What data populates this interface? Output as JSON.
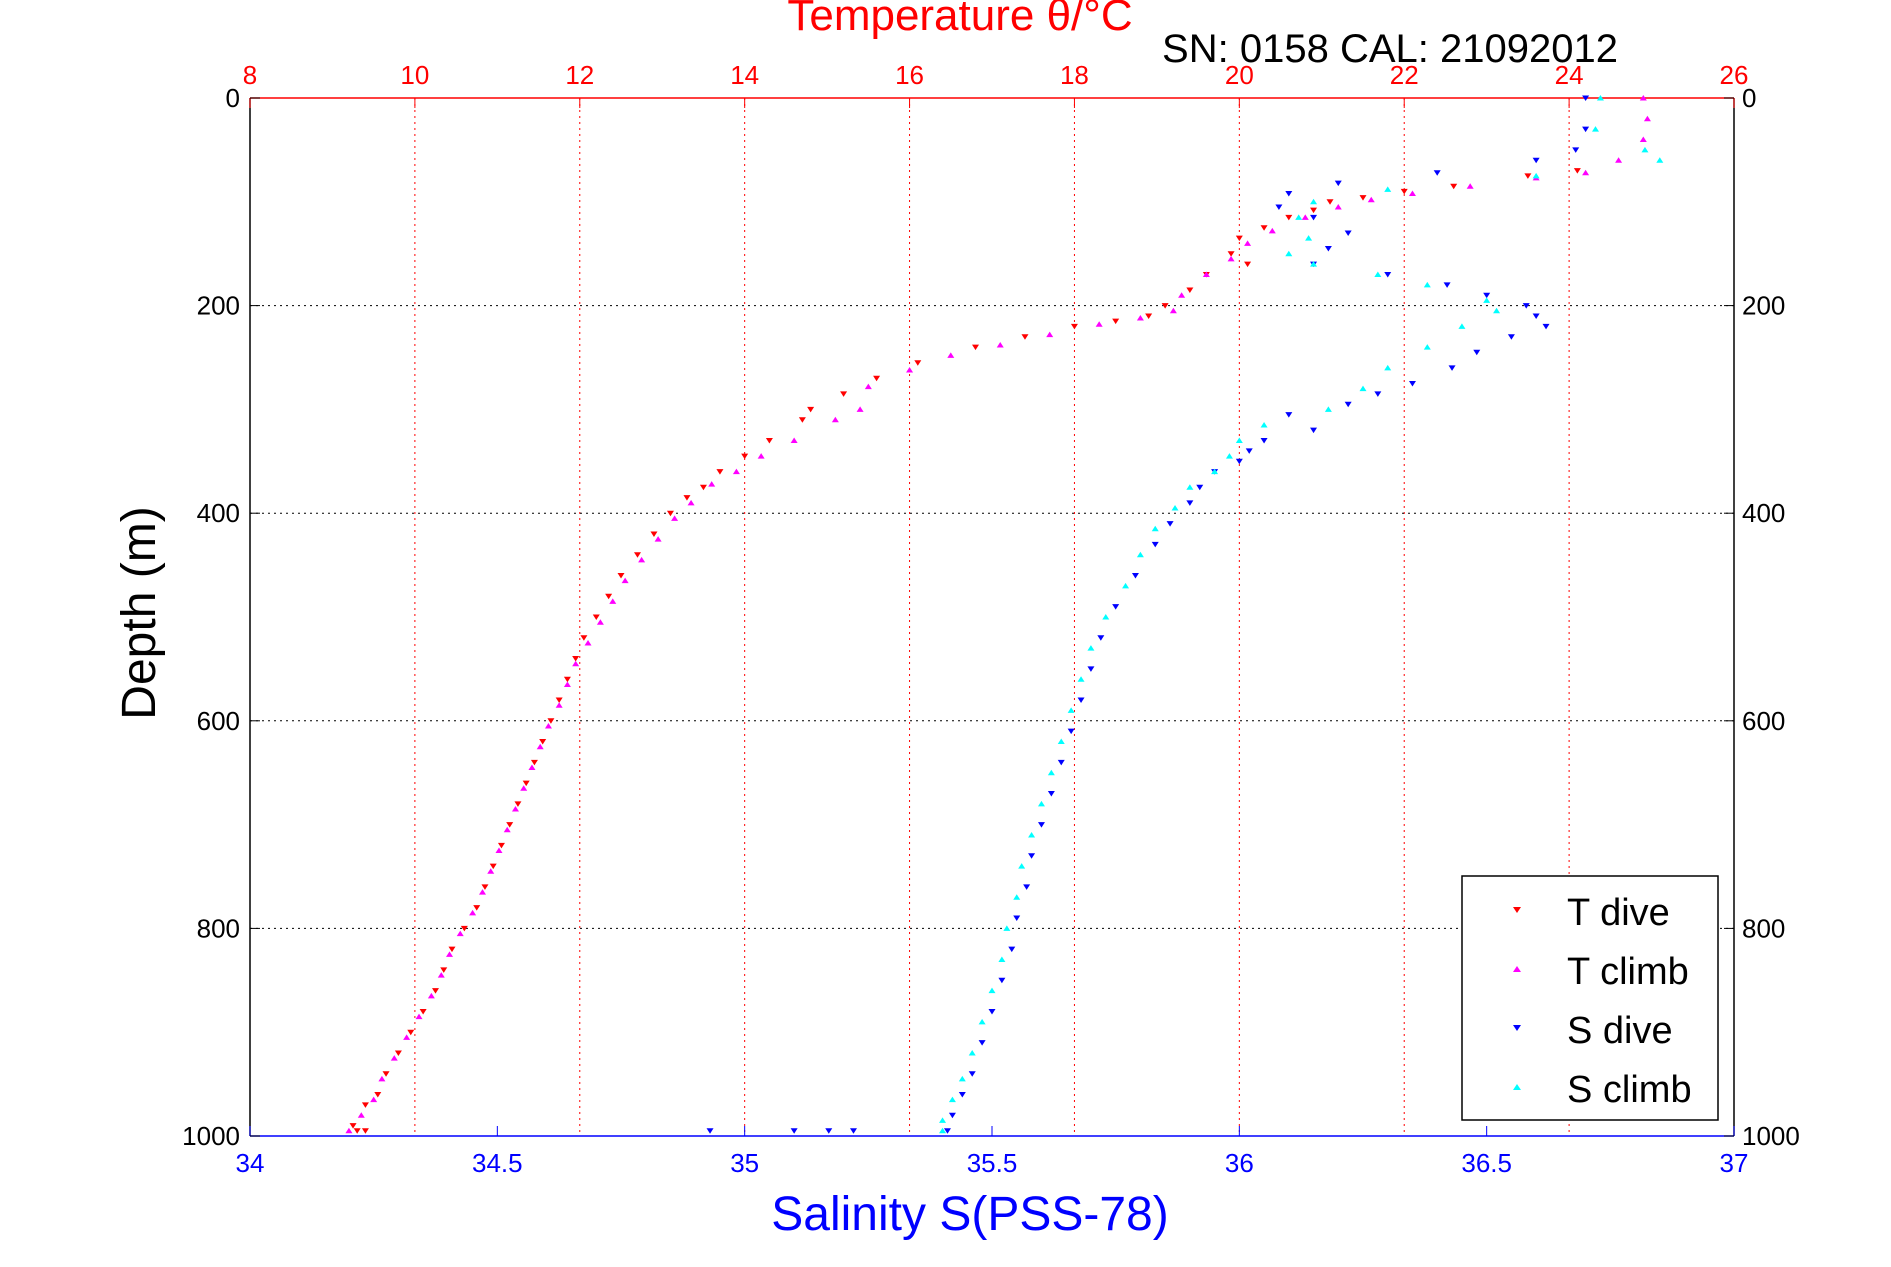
{
  "chart_data": {
    "type": "scatter",
    "title": "Temperature θ/°C",
    "subtitle": "SN: 0158  CAL: 21092012",
    "xlabel": "Salinity S(PSS-78)",
    "ylabel": "Depth (m)",
    "x_top": {
      "range": [
        8,
        26
      ],
      "ticks": [
        "8",
        "10",
        "12",
        "14",
        "16",
        "18",
        "20",
        "22",
        "24",
        "26"
      ],
      "color": "#ff0000"
    },
    "x_bottom": {
      "range": [
        34,
        37
      ],
      "ticks": [
        "34",
        "34.5",
        "35",
        "35.5",
        "36",
        "36.5",
        "37"
      ],
      "color": "#0000ff"
    },
    "y": {
      "range": [
        0,
        1000
      ],
      "reversed": true,
      "ticks": [
        "0",
        "200",
        "400",
        "600",
        "800",
        "1000"
      ]
    },
    "grid": true,
    "legend_position": "bottom-right",
    "series": [
      {
        "name": "T dive",
        "axis": "top",
        "color": "#ff0000",
        "marker": "triangle-down",
        "points": [
          [
            24.1,
            70
          ],
          [
            23.5,
            75
          ],
          [
            22.6,
            85
          ],
          [
            22,
            90
          ],
          [
            21.5,
            96
          ],
          [
            21.1,
            100
          ],
          [
            20.9,
            108
          ],
          [
            20.6,
            115
          ],
          [
            20.3,
            125
          ],
          [
            20,
            135
          ],
          [
            19.9,
            150
          ],
          [
            20.1,
            160
          ],
          [
            19.6,
            170
          ],
          [
            19.4,
            185
          ],
          [
            19.1,
            200
          ],
          [
            18.9,
            210
          ],
          [
            18.5,
            215
          ],
          [
            18,
            220
          ],
          [
            17.4,
            230
          ],
          [
            16.8,
            240
          ],
          [
            16.1,
            255
          ],
          [
            15.6,
            270
          ],
          [
            15.2,
            285
          ],
          [
            14.8,
            300
          ],
          [
            14.7,
            310
          ],
          [
            14.3,
            330
          ],
          [
            14,
            345
          ],
          [
            13.7,
            360
          ],
          [
            13.5,
            375
          ],
          [
            13.3,
            385
          ],
          [
            13.1,
            400
          ],
          [
            12.9,
            420
          ],
          [
            12.7,
            440
          ],
          [
            12.5,
            460
          ],
          [
            12.35,
            480
          ],
          [
            12.2,
            500
          ],
          [
            12.05,
            520
          ],
          [
            11.95,
            540
          ],
          [
            11.85,
            560
          ],
          [
            11.75,
            580
          ],
          [
            11.65,
            600
          ],
          [
            11.55,
            620
          ],
          [
            11.45,
            640
          ],
          [
            11.35,
            660
          ],
          [
            11.25,
            680
          ],
          [
            11.15,
            700
          ],
          [
            11.05,
            720
          ],
          [
            10.95,
            740
          ],
          [
            10.85,
            760
          ],
          [
            10.75,
            780
          ],
          [
            10.6,
            800
          ],
          [
            10.45,
            820
          ],
          [
            10.35,
            840
          ],
          [
            10.25,
            860
          ],
          [
            10.1,
            880
          ],
          [
            9.95,
            900
          ],
          [
            9.8,
            920
          ],
          [
            9.65,
            940
          ],
          [
            9.55,
            960
          ],
          [
            9.4,
            970
          ],
          [
            9.25,
            990
          ],
          [
            9.3,
            995
          ],
          [
            9.4,
            995
          ]
        ]
      },
      {
        "name": "T climb",
        "axis": "top",
        "color": "#ff00ff",
        "marker": "triangle-up",
        "points": [
          [
            24.9,
            0
          ],
          [
            24.95,
            20
          ],
          [
            24.9,
            40
          ],
          [
            24.6,
            60
          ],
          [
            24.2,
            72
          ],
          [
            23.6,
            77
          ],
          [
            22.8,
            85
          ],
          [
            22.1,
            92
          ],
          [
            21.6,
            98
          ],
          [
            21.2,
            105
          ],
          [
            20.8,
            115
          ],
          [
            20.4,
            128
          ],
          [
            20.1,
            140
          ],
          [
            19.9,
            155
          ],
          [
            19.6,
            170
          ],
          [
            19.3,
            190
          ],
          [
            19.2,
            205
          ],
          [
            18.8,
            212
          ],
          [
            18.3,
            218
          ],
          [
            17.7,
            228
          ],
          [
            17.1,
            238
          ],
          [
            16.5,
            248
          ],
          [
            16,
            262
          ],
          [
            15.5,
            278
          ],
          [
            15.4,
            300
          ],
          [
            15.1,
            310
          ],
          [
            14.6,
            330
          ],
          [
            14.2,
            345
          ],
          [
            13.9,
            360
          ],
          [
            13.6,
            372
          ],
          [
            13.35,
            390
          ],
          [
            13.15,
            405
          ],
          [
            12.95,
            425
          ],
          [
            12.75,
            445
          ],
          [
            12.55,
            465
          ],
          [
            12.4,
            485
          ],
          [
            12.25,
            505
          ],
          [
            12.1,
            525
          ],
          [
            11.95,
            545
          ],
          [
            11.85,
            565
          ],
          [
            11.75,
            585
          ],
          [
            11.62,
            605
          ],
          [
            11.52,
            625
          ],
          [
            11.42,
            645
          ],
          [
            11.32,
            665
          ],
          [
            11.22,
            685
          ],
          [
            11.12,
            705
          ],
          [
            11.02,
            725
          ],
          [
            10.92,
            745
          ],
          [
            10.82,
            765
          ],
          [
            10.7,
            785
          ],
          [
            10.55,
            805
          ],
          [
            10.42,
            825
          ],
          [
            10.32,
            845
          ],
          [
            10.2,
            865
          ],
          [
            10.05,
            885
          ],
          [
            9.9,
            905
          ],
          [
            9.75,
            925
          ],
          [
            9.6,
            945
          ],
          [
            9.5,
            965
          ],
          [
            9.35,
            980
          ],
          [
            9.2,
            995
          ]
        ]
      },
      {
        "name": "S dive",
        "axis": "bottom",
        "color": "#0000ff",
        "marker": "triangle-down",
        "points": [
          [
            36.7,
            0
          ],
          [
            36.7,
            30
          ],
          [
            36.68,
            50
          ],
          [
            36.6,
            60
          ],
          [
            36.4,
            72
          ],
          [
            36.2,
            82
          ],
          [
            36.1,
            92
          ],
          [
            36.08,
            105
          ],
          [
            36.15,
            115
          ],
          [
            36.22,
            130
          ],
          [
            36.18,
            145
          ],
          [
            36.15,
            160
          ],
          [
            36.3,
            170
          ],
          [
            36.42,
            180
          ],
          [
            36.5,
            190
          ],
          [
            36.58,
            200
          ],
          [
            36.6,
            210
          ],
          [
            36.62,
            220
          ],
          [
            36.55,
            230
          ],
          [
            36.48,
            245
          ],
          [
            36.43,
            260
          ],
          [
            36.35,
            275
          ],
          [
            36.28,
            285
          ],
          [
            36.22,
            295
          ],
          [
            36.1,
            305
          ],
          [
            36.15,
            320
          ],
          [
            36.05,
            330
          ],
          [
            36.02,
            340
          ],
          [
            36,
            350
          ],
          [
            35.95,
            360
          ],
          [
            35.92,
            375
          ],
          [
            35.9,
            390
          ],
          [
            35.86,
            410
          ],
          [
            35.83,
            430
          ],
          [
            35.79,
            460
          ],
          [
            35.75,
            490
          ],
          [
            35.72,
            520
          ],
          [
            35.7,
            550
          ],
          [
            35.68,
            580
          ],
          [
            35.66,
            610
          ],
          [
            35.64,
            640
          ],
          [
            35.62,
            670
          ],
          [
            35.6,
            700
          ],
          [
            35.58,
            730
          ],
          [
            35.57,
            760
          ],
          [
            35.55,
            790
          ],
          [
            35.54,
            820
          ],
          [
            35.52,
            850
          ],
          [
            35.5,
            880
          ],
          [
            35.48,
            910
          ],
          [
            35.46,
            940
          ],
          [
            35.44,
            960
          ],
          [
            35.42,
            980
          ],
          [
            35.41,
            995
          ],
          [
            34.93,
            995
          ],
          [
            35.1,
            995
          ],
          [
            35.17,
            995
          ],
          [
            35.22,
            995
          ]
        ]
      },
      {
        "name": "S climb",
        "axis": "bottom",
        "color": "#00ffff",
        "marker": "triangle-up",
        "points": [
          [
            36.73,
            0
          ],
          [
            36.72,
            30
          ],
          [
            36.82,
            50
          ],
          [
            36.85,
            60
          ],
          [
            36.6,
            75
          ],
          [
            36.3,
            88
          ],
          [
            36.15,
            100
          ],
          [
            36.12,
            115
          ],
          [
            36.14,
            135
          ],
          [
            36.1,
            150
          ],
          [
            36.15,
            160
          ],
          [
            36.28,
            170
          ],
          [
            36.38,
            180
          ],
          [
            36.5,
            195
          ],
          [
            36.52,
            205
          ],
          [
            36.45,
            220
          ],
          [
            36.38,
            240
          ],
          [
            36.3,
            260
          ],
          [
            36.25,
            280
          ],
          [
            36.18,
            300
          ],
          [
            36.05,
            315
          ],
          [
            36,
            330
          ],
          [
            35.98,
            345
          ],
          [
            35.95,
            360
          ],
          [
            35.9,
            375
          ],
          [
            35.87,
            395
          ],
          [
            35.83,
            415
          ],
          [
            35.8,
            440
          ],
          [
            35.77,
            470
          ],
          [
            35.73,
            500
          ],
          [
            35.7,
            530
          ],
          [
            35.68,
            560
          ],
          [
            35.66,
            590
          ],
          [
            35.64,
            620
          ],
          [
            35.62,
            650
          ],
          [
            35.6,
            680
          ],
          [
            35.58,
            710
          ],
          [
            35.56,
            740
          ],
          [
            35.55,
            770
          ],
          [
            35.53,
            800
          ],
          [
            35.52,
            830
          ],
          [
            35.5,
            860
          ],
          [
            35.48,
            890
          ],
          [
            35.46,
            920
          ],
          [
            35.44,
            945
          ],
          [
            35.42,
            965
          ],
          [
            35.4,
            985
          ],
          [
            35.4,
            995
          ]
        ]
      }
    ]
  },
  "legend": {
    "items": [
      {
        "label": "T dive",
        "color": "#ff0000",
        "marker": "triangle-down"
      },
      {
        "label": "T climb",
        "color": "#ff00ff",
        "marker": "triangle-up"
      },
      {
        "label": "S dive",
        "color": "#0000ff",
        "marker": "triangle-down"
      },
      {
        "label": "S climb",
        "color": "#00ffff",
        "marker": "triangle-up"
      }
    ]
  }
}
